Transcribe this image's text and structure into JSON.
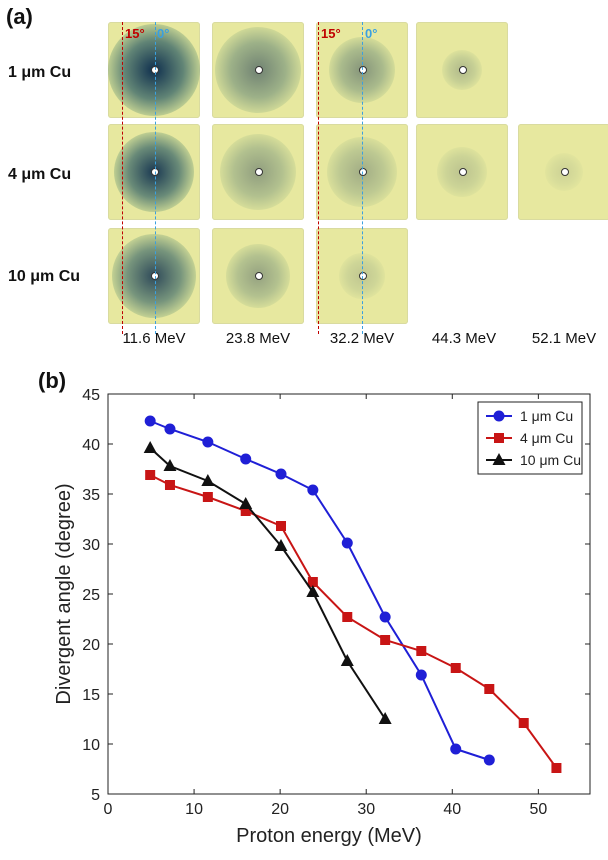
{
  "panel_a": {
    "label": "(a)",
    "rows": [
      "1 μm Cu",
      "4 μm Cu",
      "10 μm Cu"
    ],
    "energies": [
      "11.6 MeV",
      "23.8 MeV",
      "32.2 MeV",
      "44.3 MeV",
      "52.1 MeV"
    ],
    "angle_red": "15°",
    "angle_blue": "0°"
  },
  "panel_b": {
    "label": "(b)"
  },
  "chart_data": {
    "type": "line",
    "xlabel": "Proton energy (MeV)",
    "ylabel": "Divergent angle (degree)",
    "xlim": [
      0,
      56
    ],
    "ylim": [
      5,
      45
    ],
    "xticks": [
      0,
      10,
      20,
      30,
      40,
      50
    ],
    "yticks": [
      5,
      10,
      15,
      20,
      25,
      30,
      35,
      40,
      45
    ],
    "grid": false,
    "legend_position": "top-right",
    "series": [
      {
        "name": "1 μm Cu",
        "color": "#1f1fd6",
        "marker": "circle",
        "x": [
          4.9,
          7.2,
          11.6,
          16.0,
          20.1,
          23.8,
          27.8,
          32.2,
          36.4,
          40.4,
          44.3
        ],
        "y": [
          42.3,
          41.5,
          40.2,
          38.5,
          37.0,
          35.4,
          30.1,
          22.7,
          16.9,
          9.5,
          8.4
        ]
      },
      {
        "name": "4 μm Cu",
        "color": "#c81515",
        "marker": "square",
        "x": [
          4.9,
          7.2,
          11.6,
          16.0,
          20.1,
          23.8,
          27.8,
          32.2,
          36.4,
          40.4,
          44.3,
          48.3,
          52.1
        ],
        "y": [
          36.9,
          35.9,
          34.7,
          33.3,
          31.8,
          26.2,
          22.7,
          20.4,
          19.3,
          17.6,
          15.5,
          12.1,
          7.6
        ]
      },
      {
        "name": "10 μm Cu",
        "color": "#111111",
        "marker": "triangle",
        "x": [
          4.9,
          7.2,
          11.6,
          16.0,
          20.1,
          23.8,
          27.8,
          32.2
        ],
        "y": [
          39.6,
          37.8,
          36.3,
          34.0,
          29.8,
          25.2,
          18.3,
          12.5
        ]
      }
    ]
  },
  "colors": {
    "film_base": "#e7e89f",
    "spot_dark": "#0f2f4e",
    "angle_red": "#c00000",
    "angle_blue": "#3aa0e0"
  }
}
